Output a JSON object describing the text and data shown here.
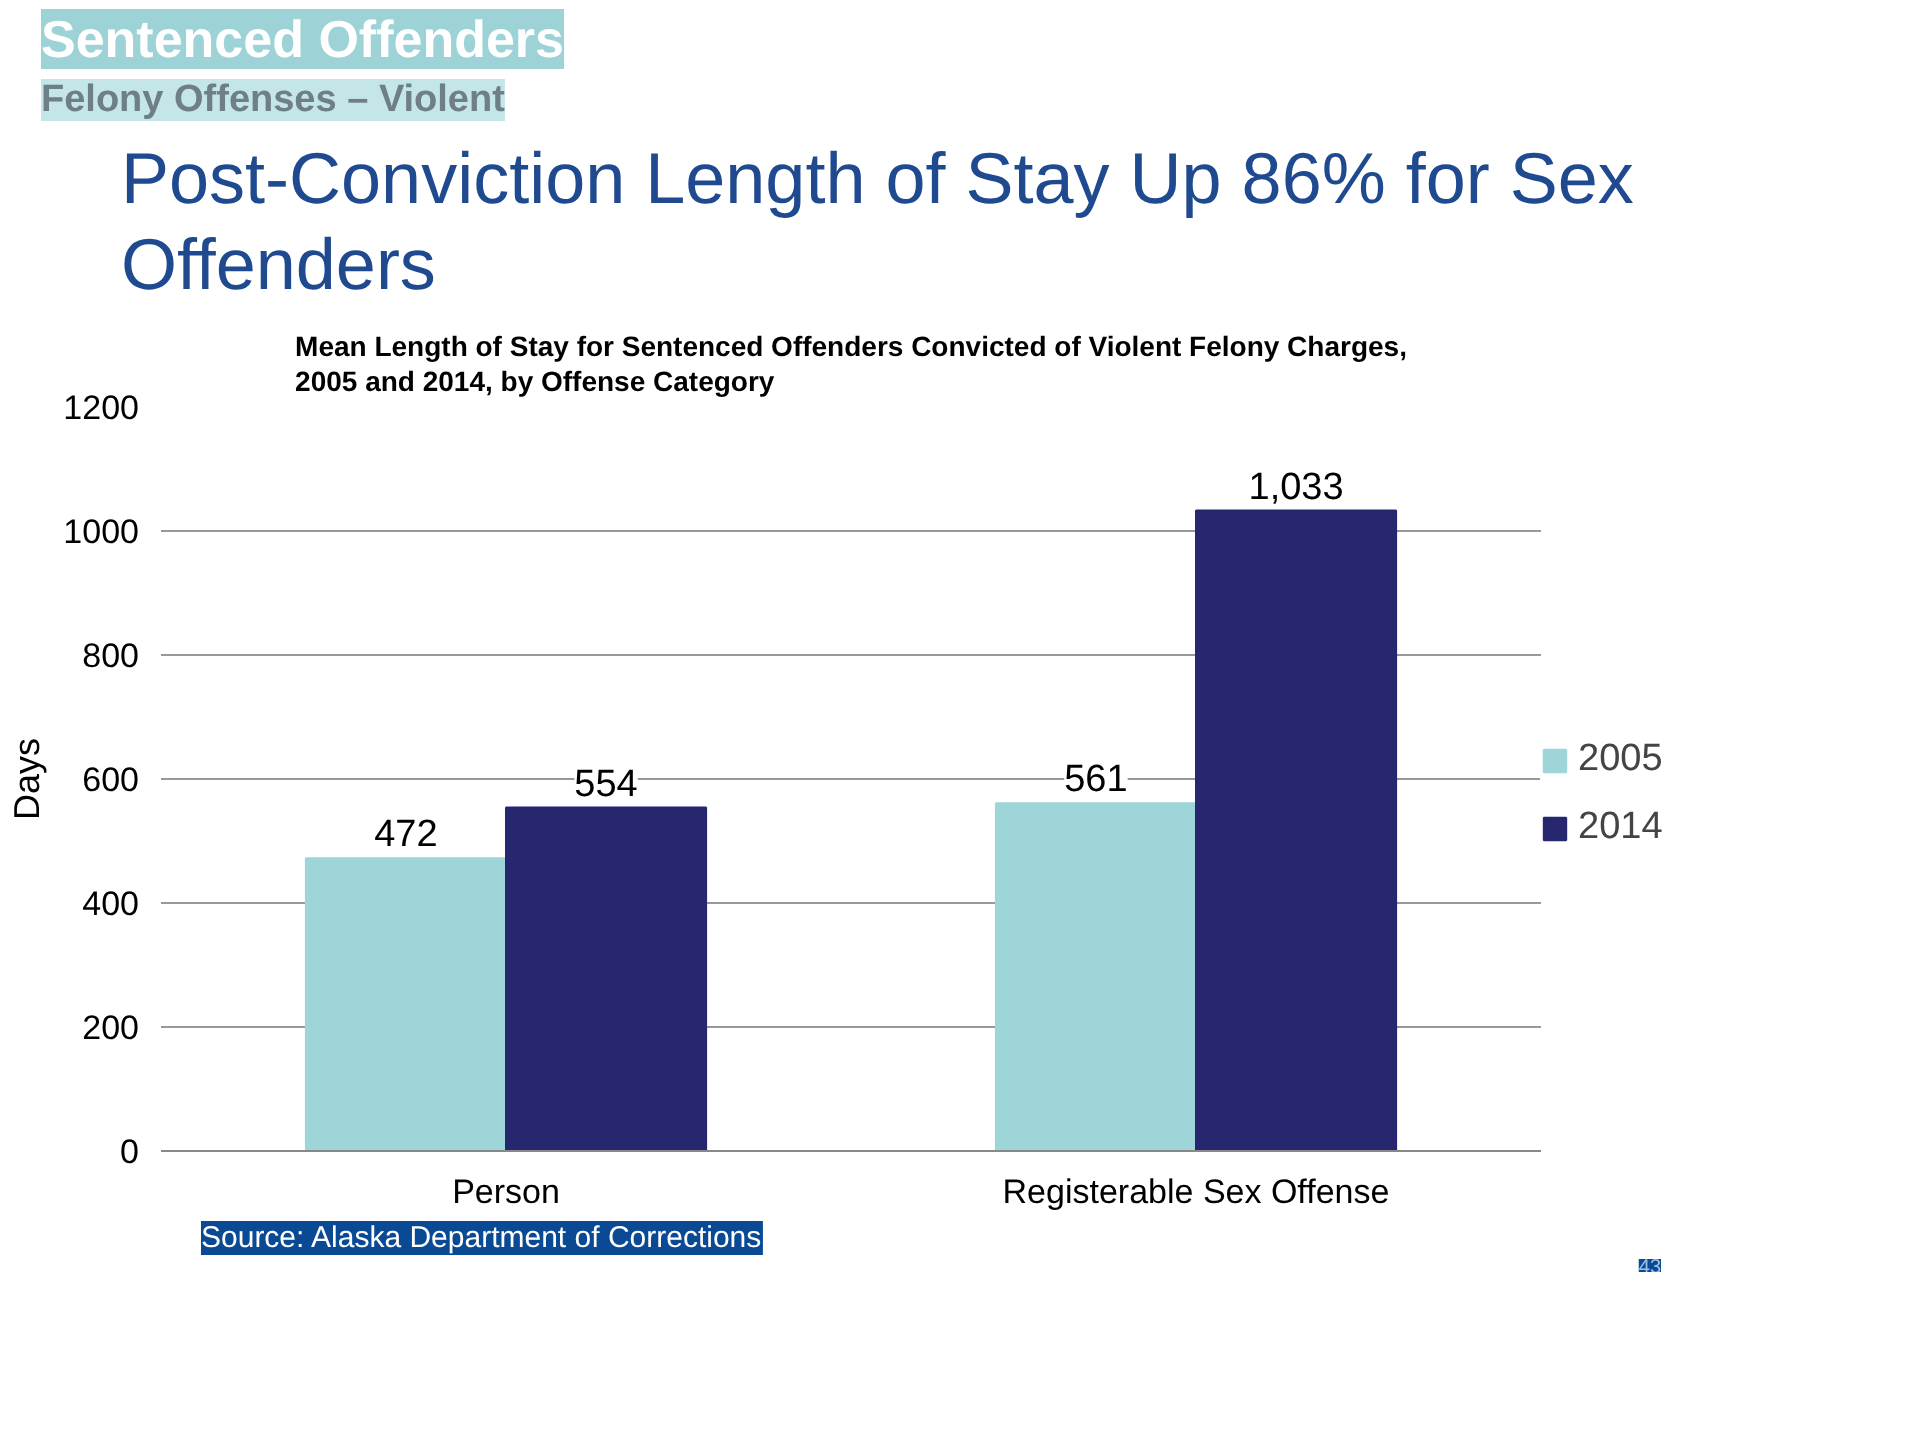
{
  "chart_data": {
    "type": "bar",
    "title": "Post-Conviction Length of Stay Up 86% for Sex Offenders",
    "subtitle": "Mean Length of Stay for Sentenced Offenders Convicted of Violent Felony Charges, 2005 and 2014, by Offense Category",
    "annotations": [
      "Sentenced Offenders",
      "Felony Offenses – Violent",
      "Source: Alaska Department of Corrections",
      "43"
    ],
    "categories": [
      "Person",
      "Registerable Sex Offense"
    ],
    "series": [
      {
        "name": "2005",
        "color": "#9dd5d8",
        "values": [
          472,
          561
        ],
        "value_labels": [
          "472",
          "561"
        ]
      },
      {
        "name": "2014",
        "color": "#27276f",
        "values": [
          554,
          1033
        ],
        "value_labels": [
          "554",
          "1,033"
        ]
      }
    ],
    "ylabel": "Days",
    "ylim": [
      0,
      1200
    ],
    "yticks": [
      0,
      200,
      400,
      600,
      800,
      1000,
      1200
    ],
    "grid": "y",
    "legend": "right"
  }
}
